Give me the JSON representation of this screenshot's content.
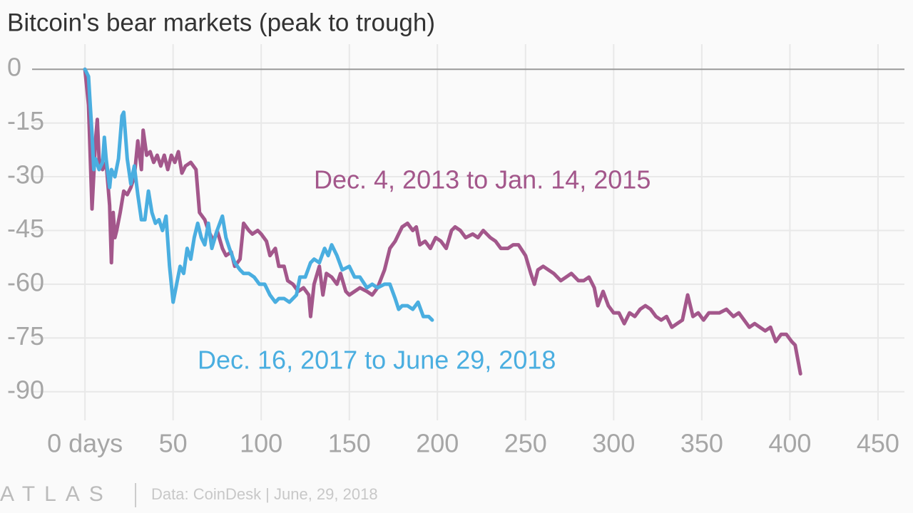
{
  "chart_data": {
    "type": "line",
    "title": "Bitcoin's bear markets (peak to trough)",
    "source": "Data: CoinDesk | June, 29, 2018",
    "logo": "ATLAS",
    "xlim": [
      -30,
      465
    ],
    "ylim": [
      -98,
      7
    ],
    "xticks": [
      {
        "value": 0,
        "label": "0 days"
      },
      50,
      100,
      150,
      200,
      250,
      300,
      350,
      400,
      450
    ],
    "yticks": [
      0,
      -15,
      -30,
      -45,
      -60,
      -75,
      -90
    ],
    "grid": true,
    "series": [
      {
        "name": "Dec. 4, 2013 to Jan. 14, 2015",
        "color": "#a3578b",
        "x": [
          0,
          2,
          4,
          6,
          7,
          8,
          10,
          12,
          14,
          15,
          16,
          17,
          18,
          20,
          22,
          24,
          26,
          28,
          30,
          32,
          33,
          35,
          37,
          39,
          41,
          43,
          45,
          47,
          49,
          51,
          53,
          55,
          57,
          60,
          63,
          65,
          68,
          70,
          73,
          75,
          78,
          80,
          83,
          85,
          88,
          90,
          93,
          95,
          98,
          100,
          103,
          105,
          108,
          110,
          113,
          115,
          118,
          121,
          124,
          127,
          128,
          130,
          133,
          135,
          137,
          140,
          143,
          145,
          148,
          150,
          153,
          156,
          160,
          163,
          166,
          170,
          173,
          176,
          178,
          180,
          183,
          186,
          188,
          190,
          193,
          196,
          199,
          202,
          205,
          208,
          210,
          213,
          216,
          220,
          223,
          226,
          230,
          233,
          236,
          240,
          243,
          246,
          250,
          253,
          255,
          257,
          260,
          263,
          266,
          270,
          273,
          276,
          280,
          283,
          286,
          289,
          291,
          294,
          297,
          300,
          303,
          306,
          309,
          312,
          315,
          318,
          321,
          324,
          327,
          330,
          333,
          336,
          339,
          342,
          345,
          348,
          351,
          354,
          357,
          360,
          364,
          368,
          371,
          374,
          377,
          380,
          383,
          386,
          389,
          392,
          395,
          398,
          401,
          403,
          406
        ],
        "values": [
          0,
          -10,
          -39,
          -20,
          -14,
          -25,
          -28,
          -26,
          -38,
          -54,
          -40,
          -47,
          -45,
          -40,
          -34,
          -35,
          -33,
          -30,
          -20,
          -28,
          -17,
          -24,
          -23,
          -26,
          -24,
          -27,
          -24,
          -28,
          -24,
          -26,
          -23,
          -29,
          -27,
          -26,
          -28,
          -40,
          -42,
          -45,
          -48,
          -45,
          -50,
          -52,
          -51,
          -55,
          -53,
          -43,
          -45,
          -46,
          -45,
          -46,
          -48,
          -52,
          -50,
          -55,
          -55,
          -59,
          -60,
          -62,
          -61,
          -63,
          -69,
          -60,
          -55,
          -63,
          -57,
          -58,
          -60,
          -57,
          -62,
          -63,
          -62,
          -61,
          -62,
          -63,
          -61,
          -56,
          -50,
          -48,
          -46,
          -44,
          -43,
          -45,
          -44,
          -49,
          -48,
          -50,
          -47,
          -48,
          -50,
          -45,
          -44,
          -45,
          -47,
          -46,
          -47,
          -45,
          -47,
          -48,
          -50,
          -50,
          -49,
          -49,
          -52,
          -57,
          -60,
          -56,
          -55,
          -56,
          -57,
          -59,
          -58,
          -57,
          -59,
          -59,
          -58,
          -61,
          -66,
          -62,
          -66,
          -68,
          -68,
          -71,
          -68,
          -69,
          -67,
          -66,
          -67,
          -69,
          -70,
          -69,
          -72,
          -71,
          -70,
          -63,
          -69,
          -68,
          -70,
          -68,
          -68,
          -68,
          -67,
          -69,
          -68,
          -70,
          -72,
          -71,
          -72,
          -73,
          -72,
          -76,
          -74,
          -74,
          -76,
          -77,
          -85
        ]
      },
      {
        "name": "Dec. 16, 2017 to June 29, 2018",
        "color": "#4aaee0",
        "x": [
          0,
          2,
          3,
          4,
          5,
          6,
          8,
          10,
          11,
          12,
          14,
          15,
          17,
          19,
          21,
          22,
          24,
          26,
          28,
          30,
          32,
          34,
          36,
          38,
          40,
          42,
          44,
          46,
          48,
          50,
          52,
          54,
          56,
          58,
          60,
          62,
          64,
          66,
          68,
          70,
          72,
          75,
          78,
          80,
          82,
          85,
          88,
          90,
          93,
          96,
          99,
          102,
          105,
          108,
          110,
          113,
          116,
          118,
          120,
          122,
          125,
          128,
          130,
          133,
          136,
          138,
          140,
          143,
          146,
          150,
          153,
          156,
          160,
          163,
          166,
          170,
          173,
          176,
          178,
          180,
          183,
          186,
          189,
          192,
          195,
          197
        ],
        "values": [
          0,
          -2,
          -10,
          -18,
          -28,
          -25,
          -28,
          -26,
          -19,
          -25,
          -33,
          -28,
          -30,
          -25,
          -13,
          -12,
          -25,
          -32,
          -27,
          -35,
          -42,
          -42,
          -34,
          -40,
          -43,
          -42,
          -45,
          -41,
          -55,
          -65,
          -60,
          -55,
          -57,
          -50,
          -53,
          -47,
          -43,
          -47,
          -49,
          -43,
          -50,
          -45,
          -41,
          -47,
          -50,
          -54,
          -56,
          -57,
          -57,
          -58,
          -60,
          -60,
          -63,
          -65,
          -64,
          -64,
          -65,
          -64,
          -63,
          -58,
          -58,
          -54,
          -53,
          -54,
          -50,
          -52,
          -49,
          -52,
          -56,
          -55,
          -58,
          -58,
          -61,
          -60,
          -61,
          -60,
          -60,
          -64,
          -67,
          -66,
          -66,
          -67,
          -65,
          -69,
          -69,
          -70
        ]
      }
    ]
  }
}
